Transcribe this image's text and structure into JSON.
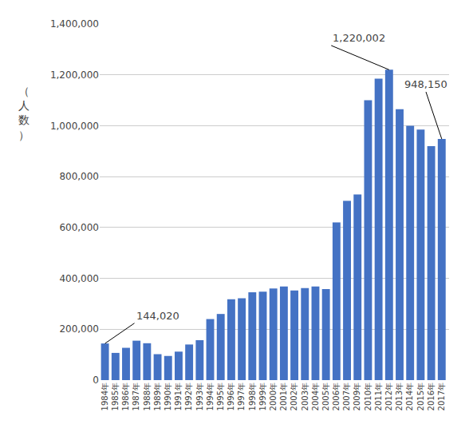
{
  "chart_data": {
    "type": "bar",
    "categories": [
      "1984年",
      "1985年",
      "1986年",
      "1987年",
      "1988年",
      "1989年",
      "1990年",
      "1991年",
      "1992年",
      "1993年",
      "1994年",
      "1995年",
      "1996年",
      "1997年",
      "1998年",
      "1999年",
      "2000年",
      "2001年",
      "2002年",
      "2003年",
      "2004年",
      "2005年",
      "2006年",
      "2007年",
      "2009年",
      "2010年",
      "2011年",
      "2012年",
      "2013年",
      "2014年",
      "2015年",
      "2016年",
      "2017年"
    ],
    "values": [
      144020,
      107000,
      127000,
      155000,
      145000,
      102000,
      95000,
      112000,
      140000,
      157000,
      240000,
      260000,
      318000,
      322000,
      345000,
      348000,
      360000,
      368000,
      352000,
      362000,
      368000,
      358000,
      620000,
      705000,
      730000,
      1100000,
      1185000,
      1220002,
      1065000,
      1000000,
      985000,
      920000,
      948150
    ],
    "color": "#4472C4",
    "ylabel": "（\n人\n数\n）",
    "ylim": [
      0,
      1400000
    ],
    "yticks": [
      0,
      {
        "value": 200000,
        "label": "200,000"
      },
      {
        "value": 400000,
        "label": "400,000"
      },
      {
        "value": 600000,
        "label": "600,000"
      },
      {
        "value": 800000,
        "label": "800,000"
      },
      {
        "value": 1000000,
        "label": "1,000,000"
      },
      {
        "value": 1200000,
        "label": "1,200,000"
      },
      {
        "value": 1400000,
        "label": "1,400,000"
      }
    ],
    "grid": true,
    "annotations": [
      {
        "text": "144,020",
        "category": "1984年",
        "value": 144020
      },
      {
        "text": "1,220,002",
        "category": "2012年",
        "value": 1220002
      },
      {
        "text": "948,150",
        "category": "2017年",
        "value": 948150
      }
    ]
  }
}
